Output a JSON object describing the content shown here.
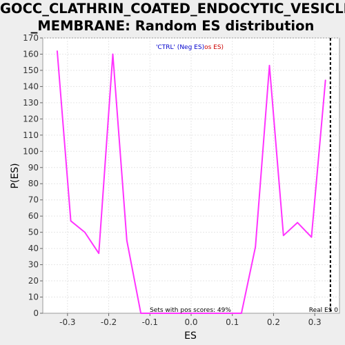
{
  "chart_data": {
    "type": "line",
    "title_lines": [
      "GOCC_CLATHRIN_COATED_ENDOCYTIC_VESICLE",
      "_MEMBRANE: Random ES distribution"
    ],
    "xlabel": "ES",
    "ylabel": "P(ES)",
    "xlim": [
      -0.36,
      0.36
    ],
    "ylim": [
      0,
      170
    ],
    "x_ticks": [
      -0.3,
      -0.2,
      -0.1,
      0.0,
      0.1,
      0.2,
      0.3
    ],
    "x_tick_labels": [
      "-0.3",
      "-0.2",
      "-0.1",
      "0.0",
      "0.1",
      "0.2",
      "0.3"
    ],
    "y_ticks": [
      0,
      10,
      20,
      30,
      40,
      50,
      60,
      70,
      80,
      90,
      100,
      110,
      120,
      130,
      140,
      150,
      160,
      170
    ],
    "grid": true,
    "legend": {
      "placement": "top-center",
      "entries": [
        {
          "text": "'CTRL' (Neg ES)",
          "color": "#0000cc"
        },
        {
          "text": "os ES)",
          "color": "#cc0000"
        }
      ]
    },
    "series": [
      {
        "color": "#ff33ff",
        "x": [
          -0.325,
          -0.292,
          -0.258,
          -0.224,
          -0.19,
          -0.156,
          -0.122,
          -0.088,
          0.122,
          0.156,
          0.19,
          0.224,
          0.258,
          0.292,
          0.326
        ],
        "y": [
          162,
          57,
          50,
          37,
          160,
          45,
          0,
          0,
          0,
          41,
          153,
          48,
          56,
          47,
          144
        ]
      }
    ],
    "real_es": {
      "x": 0.338,
      "label": "Real ES 0"
    },
    "annotation": "Sets with pos scores: 49%",
    "colors": {
      "background": "#eeeeee",
      "plot_bg": "#ffffff",
      "grid": "#e6e6e6",
      "curve": "#ff33ff"
    }
  }
}
